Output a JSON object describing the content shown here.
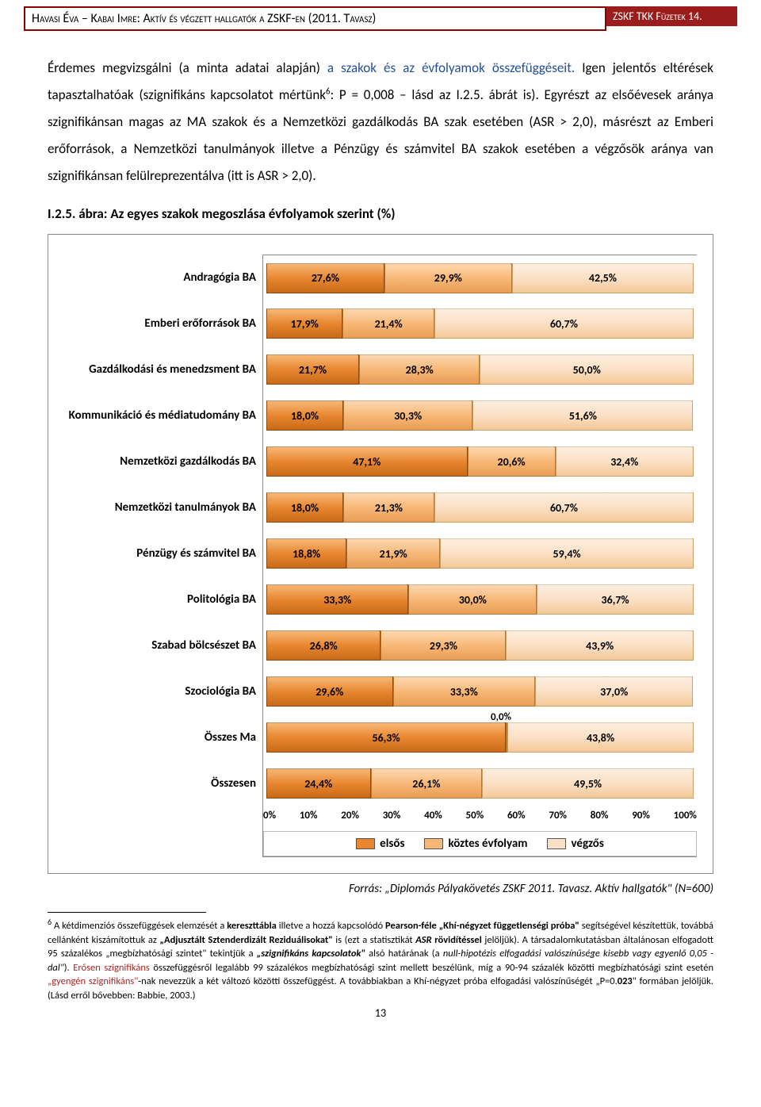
{
  "header": {
    "left": "Havasi Éva – Kabai Imre: Aktív és végzett hallgatók a ZSKF-en (2011. Tavasz)",
    "right": "ZSKF TKK Füzetek 14."
  },
  "para1_a": "Érdemes megvizsgálni (a minta adatai alapján) ",
  "para1_b": "a szakok és az évfolyamok összefüggéseit.",
  "para1_c": " Igen jelentős eltérések tapasztalhatóak (szignifikáns kapcsolatot mértünk",
  "para1_sup": "6",
  "para1_d": ": P = 0,008 – lásd az I.2.5. ábrát is). Egyrészt az elsőévesek aránya szignifikánsan magas az MA szakok és a Nemzetközi gazdálkodás BA szak esetében (ASR > 2,0), másrészt az Emberi erőforrások, a Nemzetközi tanulmányok illetve a Pénzügy és számvitel BA szakok esetében a végzősök aránya van szignifikánsan felülreprezentálva (itt is ASR > 2,0).",
  "chart_title": "I.2.5. ábra: Az egyes szakok megoszlása évfolyamok szerint (%)",
  "chart": {
    "rows": [
      {
        "label": "Andragógia BA",
        "v": [
          27.6,
          29.9,
          42.5
        ],
        "t": [
          "27,6%",
          "29,9%",
          "42,5%"
        ]
      },
      {
        "label": "Emberi erőforrások BA",
        "v": [
          17.9,
          21.4,
          60.7
        ],
        "t": [
          "17,9%",
          "21,4%",
          "60,7%"
        ]
      },
      {
        "label": "Gazdálkodási és menedzsment BA",
        "v": [
          21.7,
          28.3,
          50.0
        ],
        "t": [
          "21,7%",
          "28,3%",
          "50,0%"
        ]
      },
      {
        "label": "Kommunikáció és médiatudomány BA",
        "v": [
          18.0,
          30.3,
          51.6
        ],
        "t": [
          "18,0%",
          "30,3%",
          "51,6%"
        ]
      },
      {
        "label": "Nemzetközi gazdálkodás BA",
        "v": [
          47.1,
          20.6,
          32.4
        ],
        "t": [
          "47,1%",
          "20,6%",
          "32,4%"
        ]
      },
      {
        "label": "Nemzetközi tanulmányok BA",
        "v": [
          18.0,
          21.3,
          60.7
        ],
        "t": [
          "18,0%",
          "21,3%",
          "60,7%"
        ]
      },
      {
        "label": "Pénzügy és számvitel BA",
        "v": [
          18.8,
          21.9,
          59.4
        ],
        "t": [
          "18,8%",
          "21,9%",
          "59,4%"
        ]
      },
      {
        "label": "Politológia BA",
        "v": [
          33.3,
          30.0,
          36.7
        ],
        "t": [
          "33,3%",
          "30,0%",
          "36,7%"
        ]
      },
      {
        "label": "Szabad bölcsészet BA",
        "v": [
          26.8,
          29.3,
          43.9
        ],
        "t": [
          "26,8%",
          "29,3%",
          "43,9%"
        ]
      },
      {
        "label": "Szociológia BA",
        "v": [
          29.6,
          33.3,
          37.0
        ],
        "t": [
          "29,6%",
          "33,3%",
          "37,0%"
        ]
      },
      {
        "label": "Összes Ma",
        "v": [
          56.3,
          0.0,
          43.8
        ],
        "t": [
          "56,3%",
          "0,0%",
          "43,8%"
        ]
      },
      {
        "label": "Összesen",
        "v": [
          24.4,
          26.1,
          49.5
        ],
        "t": [
          "24,4%",
          "26,1%",
          "49,5%"
        ]
      }
    ],
    "axis": [
      "0%",
      "10%",
      "20%",
      "30%",
      "40%",
      "50%",
      "60%",
      "70%",
      "80%",
      "90%",
      "100%"
    ],
    "legend": [
      "elsős",
      "köztes évfolyam",
      "végzős"
    ],
    "colors": [
      "#e88730",
      "#f7b877",
      "#fbe0c5"
    ]
  },
  "source": "Forrás: „Diplomás Pályakövetés ZSKF 2011. Tavasz. Aktív hallgatók\" (N=600)",
  "footnote": {
    "num": "6",
    "a": " A kétdimenziós összefüggések elemzését a ",
    "b": "kereszttábla",
    "c": " illetve a hozzá kapcsolódó ",
    "d": "Pearson-féle „Khí-négyzet függetlenségi próba\"",
    "e": " segítségével készítettük, továbbá cellánként kiszámítottuk az ",
    "f": "„Adjusztált Sztenderdizált Reziduálisokat\"",
    "g": " is (ezt a statisztikát ",
    "h": "ASR",
    "i": " ",
    "j": "rövidítéssel",
    "k": " jelöljük). A társadalomkutatásban általánosan elfogadott 95 százalékos „megbízhatósági szintet\" tekintjük a ",
    "l": "„szignifikáns kapcsolatok\"",
    "m": " alsó határának (a ",
    "n": "null-hipotézis elfogadási valószínűsége kisebb vagy egyenlő 0,05 -dal\"",
    "o": "). ",
    "p": "Erősen szignifikáns",
    "q": " összefüggésről legalább 99 százalékos megbízhatósági szint mellett beszélünk, míg a 90-94 százalék közötti megbízhatósági szint esetén ",
    "r": "„gyengén szignifikáns\"",
    "s": "-nak nevezzük a két változó közötti összefüggést. A továbbiakban a Khí-négyzet próba elfogadási valószínűségét „P=0.",
    "t": "023",
    "u": "\" formában jelöljük. (Lásd erről bővebben: Babbie, 2003.)"
  },
  "pagenum": "13"
}
